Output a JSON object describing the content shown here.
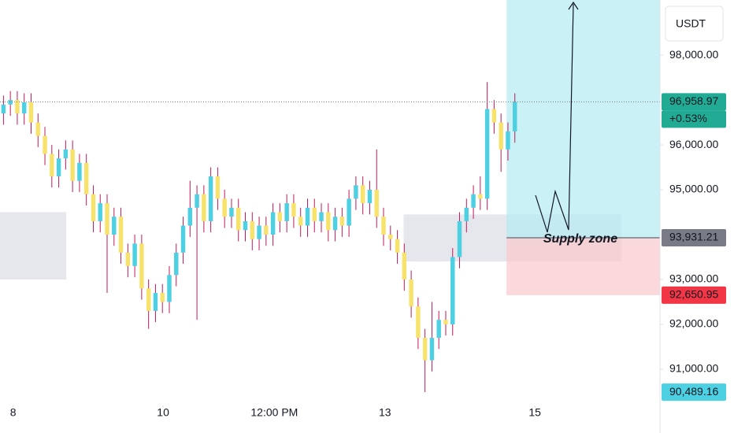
{
  "chart_data": {
    "type": "candlestick",
    "currency": "USDT",
    "xlim": [
      -0.5,
      95
    ],
    "ylim": [
      90280,
      99230
    ],
    "xticks": [
      {
        "value": 1.4,
        "label": "8"
      },
      {
        "value": 23.1,
        "label": "10"
      },
      {
        "value": 39.2,
        "label": "12:00 PM"
      },
      {
        "value": 55.2,
        "label": "13"
      },
      {
        "value": 76.9,
        "label": "15"
      }
    ],
    "yticks": [
      {
        "value": 98000,
        "label": "98,000.00"
      },
      {
        "value": 96000,
        "label": "96,000.00"
      },
      {
        "value": 95000,
        "label": "95,000.00"
      },
      {
        "value": 93000,
        "label": "93,000.00"
      },
      {
        "value": 92000,
        "label": "92,000.00"
      },
      {
        "value": 91000,
        "label": "91,000.00"
      }
    ],
    "up_color": "#4dd0e1",
    "down_color": "#f7e36b",
    "wick_color": "#c2185b",
    "open": [
      96700,
      96900,
      97000,
      96700,
      96950,
      96500,
      96200,
      95800,
      95300,
      95700,
      95900,
      95200,
      95600,
      94900,
      94300,
      94700,
      94000,
      94400,
      93600,
      93300,
      93800,
      92800,
      92300,
      92700,
      92500,
      93100,
      93600,
      94200,
      94600,
      94900,
      94300,
      95300,
      94800,
      94400,
      94600,
      94100,
      94300,
      93900,
      94200,
      94000,
      94500,
      94300,
      94700,
      94400,
      94200,
      94600,
      94300,
      94500,
      94100,
      94400,
      94200,
      94800,
      95100,
      94700,
      95000,
      94400,
      94000,
      93900,
      93600,
      93000,
      92400,
      91700,
      91200,
      91700,
      92100,
      92000,
      93500,
      94300,
      94600,
      94900,
      94800,
      96800,
      96500,
      95900,
      96300
    ],
    "high": [
      97100,
      97200,
      97200,
      97150,
      97150,
      96700,
      96400,
      96000,
      95900,
      96100,
      96100,
      95800,
      95800,
      95100,
      94900,
      94900,
      94600,
      94600,
      93800,
      94000,
      94000,
      93000,
      92900,
      92900,
      93300,
      93800,
      94400,
      95200,
      95100,
      95100,
      95500,
      95500,
      95000,
      94800,
      94800,
      94500,
      94500,
      94400,
      94400,
      94700,
      94700,
      94900,
      94900,
      94600,
      94800,
      94800,
      94700,
      94700,
      94600,
      94600,
      95000,
      95300,
      95300,
      95200,
      95900,
      94600,
      94200,
      94100,
      93800,
      93200,
      92600,
      91900,
      92500,
      92300,
      92300,
      93700,
      94500,
      94800,
      95100,
      95300,
      97400,
      97000,
      96700,
      96500,
      97150
    ],
    "low": [
      96450,
      96650,
      96450,
      96450,
      96250,
      95950,
      95550,
      95050,
      95050,
      95450,
      94950,
      94950,
      94650,
      94050,
      94050,
      92700,
      93750,
      93350,
      93050,
      93050,
      92550,
      91900,
      92050,
      92250,
      92250,
      92850,
      93350,
      93950,
      92100,
      94050,
      94050,
      94550,
      94150,
      94150,
      93850,
      93850,
      93650,
      93650,
      93750,
      93750,
      94050,
      94050,
      94150,
      93950,
      93950,
      94050,
      94050,
      93850,
      93850,
      93950,
      93950,
      94550,
      94450,
      94450,
      94150,
      93750,
      93650,
      93350,
      92750,
      92150,
      91450,
      90489.16,
      90950,
      91450,
      91750,
      91750,
      93250,
      94050,
      94350,
      94550,
      94550,
      96250,
      95400,
      95650,
      96050
    ],
    "close": [
      96900,
      97000,
      96700,
      96950,
      96500,
      96200,
      95800,
      95300,
      95700,
      95900,
      95200,
      95600,
      94900,
      94300,
      94700,
      94000,
      94400,
      93600,
      93300,
      93800,
      92800,
      92300,
      92700,
      92500,
      93100,
      93600,
      94200,
      94600,
      94900,
      94300,
      95300,
      94800,
      94400,
      94600,
      94100,
      94300,
      93900,
      94200,
      94000,
      94500,
      94300,
      94700,
      94400,
      94200,
      94600,
      94300,
      94500,
      94100,
      94400,
      94200,
      94800,
      95100,
      94700,
      95000,
      94400,
      94000,
      93900,
      93600,
      93000,
      92400,
      91700,
      91200,
      91700,
      92100,
      92000,
      93500,
      94300,
      94600,
      94900,
      94800,
      96800,
      96500,
      95900,
      96300,
      96958.97
    ],
    "zones": [
      {
        "x": [
          -0.5,
          9.1
        ],
        "low": 93000,
        "high": 94500
      },
      {
        "x": [
          57.9,
          89.4
        ],
        "low": 93400,
        "high": 94450
      }
    ],
    "position": {
      "x": [
        72.8,
        95
      ],
      "entry": 93931.21,
      "stop": 92650.95
    },
    "markers": [
      {
        "value": 96958.97,
        "label": "96,958.97",
        "color": "#22ab94",
        "text_color": "#ffffff"
      },
      {
        "value": 93931.21,
        "label": "93,931.21",
        "color": "#787b86",
        "text_color": "#ffffff"
      },
      {
        "value": 92650.95,
        "label": "92,650.95",
        "color": "#f23645",
        "text_color": "#ffffff"
      },
      {
        "value": 90489.16,
        "label": "90,489.16",
        "color": "#4dd0e1",
        "text_color": "#131722"
      }
    ],
    "change": {
      "value": 0.53,
      "label": "+0.53%"
    },
    "annotation": "Supply zone"
  }
}
